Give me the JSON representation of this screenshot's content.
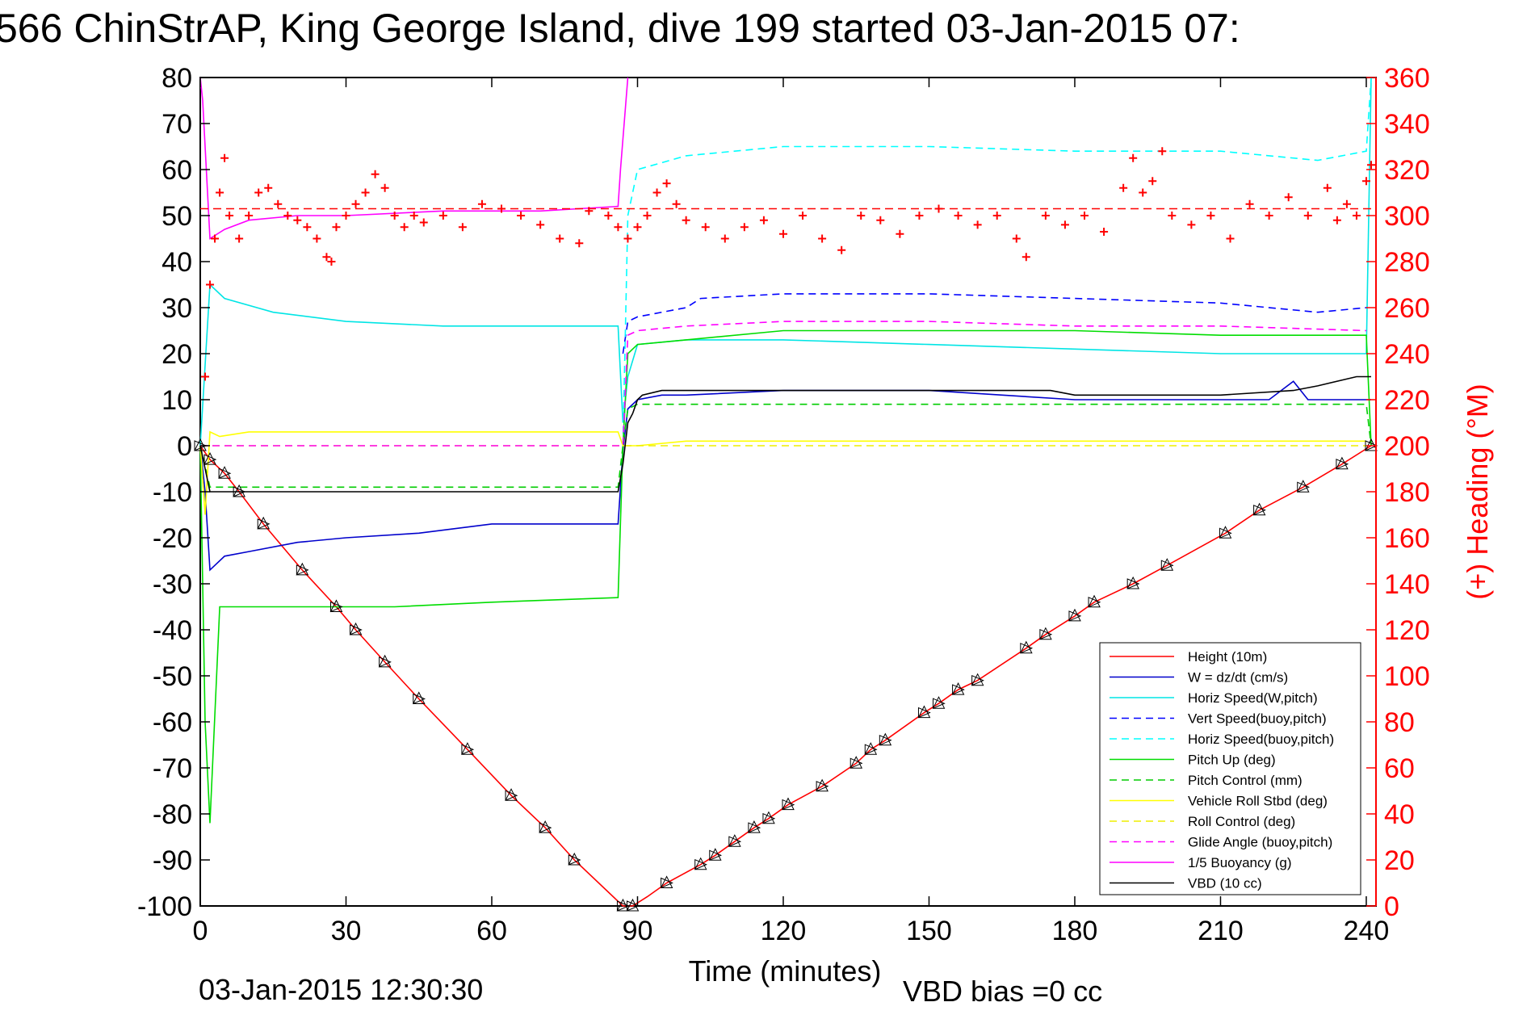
{
  "title": "566 ChinStrAP, King George Island, dive 199 started 03-Jan-2015 07:",
  "footer_left": "03-Jan-2015 12:30:30",
  "footer_right": "VBD bias =0 cc",
  "colors": {
    "height": "#ff0000",
    "w": "#0000cc",
    "horiz_w": "#00e5e5",
    "vert_buoy": "#0000ff",
    "horiz_buoy": "#00ffff",
    "pitch_up": "#00dd00",
    "pitch_ctrl": "#00cc00",
    "roll": "#ffff00",
    "roll_ctrl": "#eeee00",
    "glide": "#ff00ff",
    "buoy": "#ff00ff",
    "vbd": "#000000",
    "heading": "#ff0000",
    "right_axis": "#ff0000"
  },
  "chart_data": {
    "type": "line",
    "xlabel": "Time (minutes)",
    "ylabel_right": "(+) Heading (°M)",
    "xlim": [
      0,
      242
    ],
    "ylim": [
      -100,
      80
    ],
    "ylim_right": [
      0,
      360
    ],
    "x_ticks": [
      0,
      30,
      60,
      90,
      120,
      150,
      180,
      210,
      240
    ],
    "y_ticks": [
      80,
      70,
      60,
      50,
      40,
      30,
      20,
      10,
      0,
      -10,
      -20,
      -30,
      -40,
      -50,
      -60,
      -70,
      -80,
      -90,
      -100
    ],
    "y_ticks_right": [
      360,
      340,
      320,
      300,
      280,
      260,
      240,
      220,
      200,
      180,
      160,
      140,
      120,
      100,
      80,
      60,
      40,
      20,
      0
    ],
    "grid": false,
    "legend_position": "bottom-right",
    "series": [
      {
        "name": "Height (10m)",
        "key": "height",
        "style": "solid",
        "x": [
          0,
          2,
          5,
          8,
          13,
          21,
          28,
          32,
          38,
          45,
          55,
          64,
          71,
          77,
          87,
          89,
          92,
          96,
          103,
          106,
          110,
          114,
          117,
          121,
          128,
          135,
          138,
          141,
          149,
          152,
          156,
          160,
          170,
          174,
          180,
          184,
          192,
          199,
          211,
          218,
          227,
          235,
          241
        ],
        "y": [
          0,
          -3,
          -6,
          -10,
          -17,
          -27,
          -35,
          -40,
          -47,
          -55,
          -66,
          -76,
          -83,
          -90,
          -100,
          -100,
          -98,
          -95,
          -91,
          -89,
          -86,
          -83,
          -81,
          -78,
          -74,
          -69,
          -66,
          -64,
          -58,
          -56,
          -53,
          -51,
          -44,
          -41,
          -37,
          -34,
          -30,
          -26,
          -19,
          -14,
          -9,
          -4,
          0
        ]
      },
      {
        "name": "W = dz/dt (cm/s)",
        "key": "w",
        "style": "solid",
        "x": [
          0,
          1,
          2,
          5,
          10,
          20,
          30,
          45,
          60,
          75,
          86,
          87,
          88,
          90,
          95,
          100,
          120,
          150,
          180,
          200,
          220,
          225,
          228,
          235,
          241
        ],
        "y": [
          0,
          -10,
          -27,
          -24,
          -23,
          -21,
          -20,
          -19,
          -17,
          -17,
          -17,
          -1,
          8,
          10,
          11,
          11,
          12,
          12,
          10,
          10,
          10,
          14,
          10,
          10,
          10
        ]
      },
      {
        "name": "Horiz Speed(W,pitch)",
        "key": "horiz_w",
        "style": "solid",
        "x": [
          0,
          2,
          5,
          15,
          30,
          50,
          70,
          86,
          87,
          88,
          90,
          100,
          120,
          150,
          180,
          210,
          240,
          241
        ],
        "y": [
          0,
          35,
          32,
          29,
          27,
          26,
          26,
          26,
          5,
          15,
          22,
          23,
          23,
          22,
          21,
          20,
          20,
          80
        ]
      },
      {
        "name": "Vert Speed(buoy,pitch)",
        "key": "vert_buoy",
        "style": "dashed",
        "x": [
          87,
          88,
          90,
          95,
          100,
          103,
          120,
          150,
          180,
          210,
          230,
          240
        ],
        "y": [
          20,
          27,
          28,
          29,
          30,
          32,
          33,
          33,
          32,
          31,
          29,
          30
        ]
      },
      {
        "name": "Horiz Speed(buoy,pitch)",
        "key": "horiz_buoy",
        "style": "dashed",
        "x": [
          87,
          88,
          90,
          100,
          120,
          150,
          180,
          210,
          230,
          240,
          241
        ],
        "y": [
          0,
          50,
          60,
          63,
          65,
          65,
          64,
          64,
          62,
          64,
          80
        ]
      },
      {
        "name": "Pitch Up (deg)",
        "key": "pitch_up",
        "style": "solid",
        "x": [
          0,
          1,
          2,
          4,
          10,
          20,
          40,
          60,
          86,
          87,
          88,
          90,
          100,
          120,
          150,
          180,
          210,
          240,
          241
        ],
        "y": [
          0,
          -60,
          -82,
          -35,
          -35,
          -35,
          -35,
          -34,
          -33,
          0,
          20,
          22,
          23,
          25,
          25,
          25,
          24,
          24,
          0
        ]
      },
      {
        "name": "Pitch Control (mm)",
        "key": "pitch_ctrl",
        "style": "dashed",
        "x": [
          0,
          2,
          5,
          86,
          87,
          88,
          90,
          240,
          241
        ],
        "y": [
          0,
          -9,
          -9,
          -9,
          0,
          8,
          9,
          9,
          0
        ]
      },
      {
        "name": "Vehicle Roll Stbd (deg)",
        "key": "roll",
        "style": "solid",
        "x": [
          0,
          1,
          2,
          4,
          10,
          30,
          50,
          70,
          86,
          87,
          88,
          90,
          100,
          130,
          160,
          190,
          220,
          240
        ],
        "y": [
          0,
          -15,
          3,
          2,
          3,
          3,
          3,
          3,
          3,
          0,
          0,
          0,
          1,
          1,
          1,
          1,
          1,
          1
        ]
      },
      {
        "name": "Roll Control (deg)",
        "key": "roll_ctrl",
        "style": "dashed",
        "x": [
          0,
          2,
          86,
          87,
          88,
          240
        ],
        "y": [
          0,
          0,
          0,
          0,
          0,
          0
        ]
      },
      {
        "name": "Glide Angle (buoy,pitch)",
        "key": "glide",
        "style": "dashed",
        "x": [
          0,
          86,
          87,
          88,
          90,
          100,
          120,
          150,
          180,
          210,
          240
        ],
        "y": [
          0,
          0,
          0,
          24,
          25,
          26,
          27,
          27,
          26,
          26,
          25
        ]
      },
      {
        "name": "1/5 Buoyancy (g)",
        "key": "buoy",
        "style": "solid",
        "x": [
          0,
          0.5,
          1.5,
          2,
          5,
          10,
          20,
          30,
          50,
          70,
          86,
          86.5,
          88
        ],
        "y": [
          80,
          75,
          55,
          45,
          47,
          49,
          50,
          50,
          51,
          51,
          52,
          60,
          80
        ]
      },
      {
        "name": "VBD (10 cc)",
        "key": "vbd",
        "style": "solid",
        "x": [
          0,
          1,
          2,
          10,
          30,
          86,
          87,
          88,
          89,
          90,
          91,
          95,
          100,
          110,
          140,
          150,
          175,
          180,
          210,
          225,
          230,
          238,
          241
        ],
        "y": [
          0,
          -5,
          -10,
          -10,
          -10,
          -10,
          -4,
          5,
          7,
          10,
          11,
          12,
          12,
          12,
          12,
          12,
          12,
          11,
          11,
          12,
          13,
          15,
          15
        ]
      }
    ],
    "heading_series": {
      "name": "Heading",
      "axis": "right",
      "marker": "+",
      "x": [
        1,
        2,
        3,
        4,
        5,
        6,
        8,
        10,
        12,
        14,
        16,
        18,
        20,
        22,
        24,
        26,
        27,
        28,
        30,
        32,
        34,
        36,
        38,
        40,
        42,
        44,
        46,
        50,
        54,
        58,
        62,
        66,
        70,
        74,
        78,
        80,
        84,
        86,
        88,
        90,
        92,
        94,
        96,
        98,
        100,
        104,
        108,
        112,
        116,
        120,
        124,
        128,
        132,
        136,
        140,
        144,
        148,
        152,
        156,
        160,
        164,
        168,
        170,
        174,
        178,
        182,
        186,
        190,
        192,
        194,
        196,
        198,
        200,
        204,
        208,
        212,
        216,
        220,
        224,
        228,
        232,
        234,
        236,
        238,
        240,
        241
      ],
      "y": [
        230,
        270,
        290,
        310,
        325,
        300,
        290,
        300,
        310,
        312,
        305,
        300,
        298,
        295,
        290,
        282,
        280,
        295,
        300,
        305,
        310,
        318,
        312,
        300,
        295,
        300,
        297,
        300,
        295,
        305,
        303,
        300,
        296,
        290,
        288,
        302,
        300,
        295,
        290,
        295,
        300,
        310,
        314,
        305,
        298,
        295,
        290,
        295,
        298,
        292,
        300,
        290,
        285,
        300,
        298,
        292,
        300,
        303,
        300,
        296,
        300,
        290,
        282,
        300,
        296,
        300,
        293,
        312,
        325,
        310,
        315,
        328,
        300,
        296,
        300,
        290,
        305,
        300,
        308,
        300,
        312,
        298,
        305,
        300,
        315,
        322
      ]
    },
    "heading_reference": {
      "y": 303,
      "style": "dashed"
    },
    "markers": {
      "symbol": "triangle",
      "x": [
        0,
        2,
        5,
        8,
        13,
        21,
        28,
        32,
        38,
        45,
        55,
        64,
        71,
        77,
        87,
        89,
        96,
        103,
        106,
        110,
        114,
        117,
        121,
        128,
        135,
        138,
        141,
        149,
        152,
        156,
        160,
        170,
        174,
        180,
        184,
        192,
        199,
        211,
        218,
        227,
        235,
        241
      ],
      "y": [
        0,
        -3,
        -6,
        -10,
        -17,
        -27,
        -35,
        -40,
        -47,
        -55,
        -66,
        -76,
        -83,
        -90,
        -100,
        -100,
        -95,
        -91,
        -89,
        -86,
        -83,
        -81,
        -78,
        -74,
        -69,
        -66,
        -64,
        -58,
        -56,
        -53,
        -51,
        -44,
        -41,
        -37,
        -34,
        -30,
        -26,
        -19,
        -14,
        -9,
        -4,
        0
      ]
    }
  }
}
